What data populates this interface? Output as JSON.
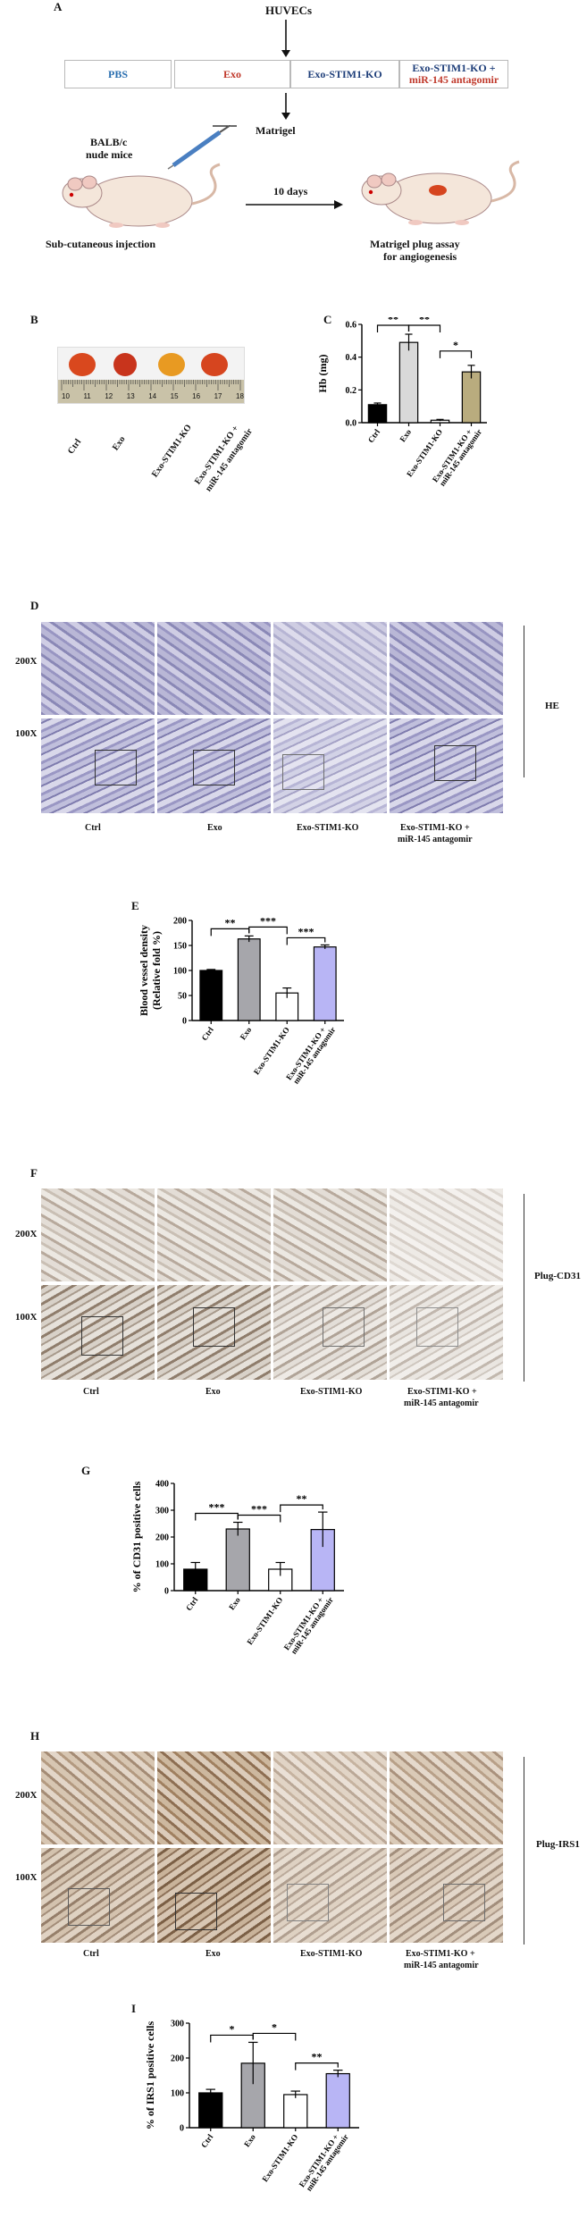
{
  "panelA": {
    "letter": "A",
    "cells": "HUVECs",
    "groups": [
      "PBS",
      "Exo",
      "Exo-STIM1-KO",
      "Exo-STIM1-KO +",
      "miR-145 antagomir"
    ],
    "matrigel": "Matrigel",
    "mice_line1": "BALB/c",
    "mice_line2": "nude mice",
    "days": "10 days",
    "injection": "Sub-cutaneous injection",
    "assay_line1": "Matrigel plug assay",
    "assay_line2": "for angiogenesis",
    "colors": {
      "pbs": "#2a6fb0",
      "exo": "#c0392b",
      "ko": "#1f3f7a",
      "antagomir": "#c0392b"
    }
  },
  "panelB": {
    "letter": "B",
    "ruler_ticks": [
      "10",
      "11",
      "12",
      "13",
      "14",
      "15",
      "16",
      "17",
      "18"
    ],
    "labels": [
      "Ctrl",
      "Exo",
      "Exo-STIM1-KO",
      "Exo-STIM1-KO +",
      "miR-145 antagomir"
    ],
    "plug_colors": [
      "#d9481e",
      "#c8341c",
      "#e89a22",
      "#d6451f"
    ]
  },
  "panelC": {
    "letter": "C",
    "chart_data": {
      "type": "bar",
      "categories": [
        "Ctrl",
        "Exo",
        "Exo-STIM1-KO",
        "Exo-STIM1-KO + miR-145 antagomir"
      ],
      "values": [
        0.11,
        0.49,
        0.015,
        0.31
      ],
      "errors": [
        0.01,
        0.05,
        0.005,
        0.04
      ],
      "colors": [
        "#000000",
        "#d9d9d9",
        "#ffffff",
        "#b9ac7e"
      ],
      "ylabel": "Hb (mg)",
      "ylim": [
        0,
        0.6
      ],
      "yticks": [
        "0.0",
        "0.2",
        "0.4",
        "0.6"
      ],
      "sig": [
        "**",
        "**",
        "*"
      ],
      "xlabels": [
        "Ctrl",
        "Exo",
        "Exo-STIM1-KO",
        "Exo-STIM1-KO +",
        "miR-145 antagomir"
      ]
    }
  },
  "panelD": {
    "letter": "D",
    "mag1": "200X",
    "mag2": "100X",
    "stain": "HE",
    "labels": [
      "Ctrl",
      "Exo",
      "Exo-STIM1-KO",
      "Exo-STIM1-KO +",
      "miR-145 antagomir"
    ]
  },
  "panelE": {
    "letter": "E",
    "chart_data": {
      "type": "bar",
      "categories": [
        "Ctrl",
        "Exo",
        "Exo-STIM1-KO",
        "Exo-STIM1-KO + miR-145 antagomir"
      ],
      "values": [
        100,
        163,
        55,
        147
      ],
      "errors": [
        2,
        6,
        10,
        4
      ],
      "colors": [
        "#000000",
        "#a6a6ab",
        "#ffffff",
        "#b8b5f5"
      ],
      "ylabel1": "Blood vessel density",
      "ylabel2": "(Relative fold %)",
      "ylim": [
        0,
        200
      ],
      "yticks": [
        "0",
        "50",
        "100",
        "150",
        "200"
      ],
      "sig": [
        "**",
        "***",
        "***"
      ],
      "xlabels": [
        "Ctrl",
        "Exo",
        "Exo-STIM1-KO",
        "Exo-STIM1-KO +",
        "miR-145 antagomir"
      ]
    }
  },
  "panelF": {
    "letter": "F",
    "mag1": "200X",
    "mag2": "100X",
    "stain": "Plug-CD31",
    "labels": [
      "Ctrl",
      "Exo",
      "Exo-STIM1-KO",
      "Exo-STIM1-KO +",
      "miR-145 antagomir"
    ]
  },
  "panelG": {
    "letter": "G",
    "chart_data": {
      "type": "bar",
      "categories": [
        "Ctrl",
        "Exo",
        "Exo-STIM1-KO",
        "Exo-STIM1-KO + miR-145 antagomir"
      ],
      "values": [
        80,
        230,
        80,
        228
      ],
      "errors": [
        25,
        25,
        25,
        65
      ],
      "colors": [
        "#000000",
        "#a6a6ab",
        "#ffffff",
        "#b8b5f5"
      ],
      "ylabel": "% of CD31 positive cells",
      "ylim": [
        0,
        400
      ],
      "yticks": [
        "0",
        "100",
        "200",
        "300",
        "400"
      ],
      "sig": [
        "***",
        "***",
        "**"
      ],
      "xlabels": [
        "Ctrl",
        "Exo",
        "Exo-STIM1-KO",
        "Exo-STIM1-KO +",
        "miR-145 antagomir"
      ]
    }
  },
  "panelH": {
    "letter": "H",
    "mag1": "200X",
    "mag2": "100X",
    "stain": "Plug-IRS1",
    "labels": [
      "Ctrl",
      "Exo",
      "Exo-STIM1-KO",
      "Exo-STIM1-KO +",
      "miR-145 antagomir"
    ]
  },
  "panelI": {
    "letter": "I",
    "chart_data": {
      "type": "bar",
      "categories": [
        "Ctrl",
        "Exo",
        "Exo-STIM1-KO",
        "Exo-STIM1-KO + miR-145 antagomir"
      ],
      "values": [
        100,
        185,
        95,
        155
      ],
      "errors": [
        10,
        60,
        10,
        10
      ],
      "colors": [
        "#000000",
        "#a6a6ab",
        "#ffffff",
        "#b8b5f5"
      ],
      "ylabel": "% of IRS1 positive cells",
      "ylim": [
        0,
        300
      ],
      "yticks": [
        "0",
        "100",
        "200",
        "300"
      ],
      "sig": [
        "*",
        "*",
        "**"
      ],
      "xlabels": [
        "Ctrl",
        "Exo",
        "Exo-STIM1-KO",
        "Exo-STIM1-KO +",
        "miR-145 antagomir"
      ]
    }
  }
}
